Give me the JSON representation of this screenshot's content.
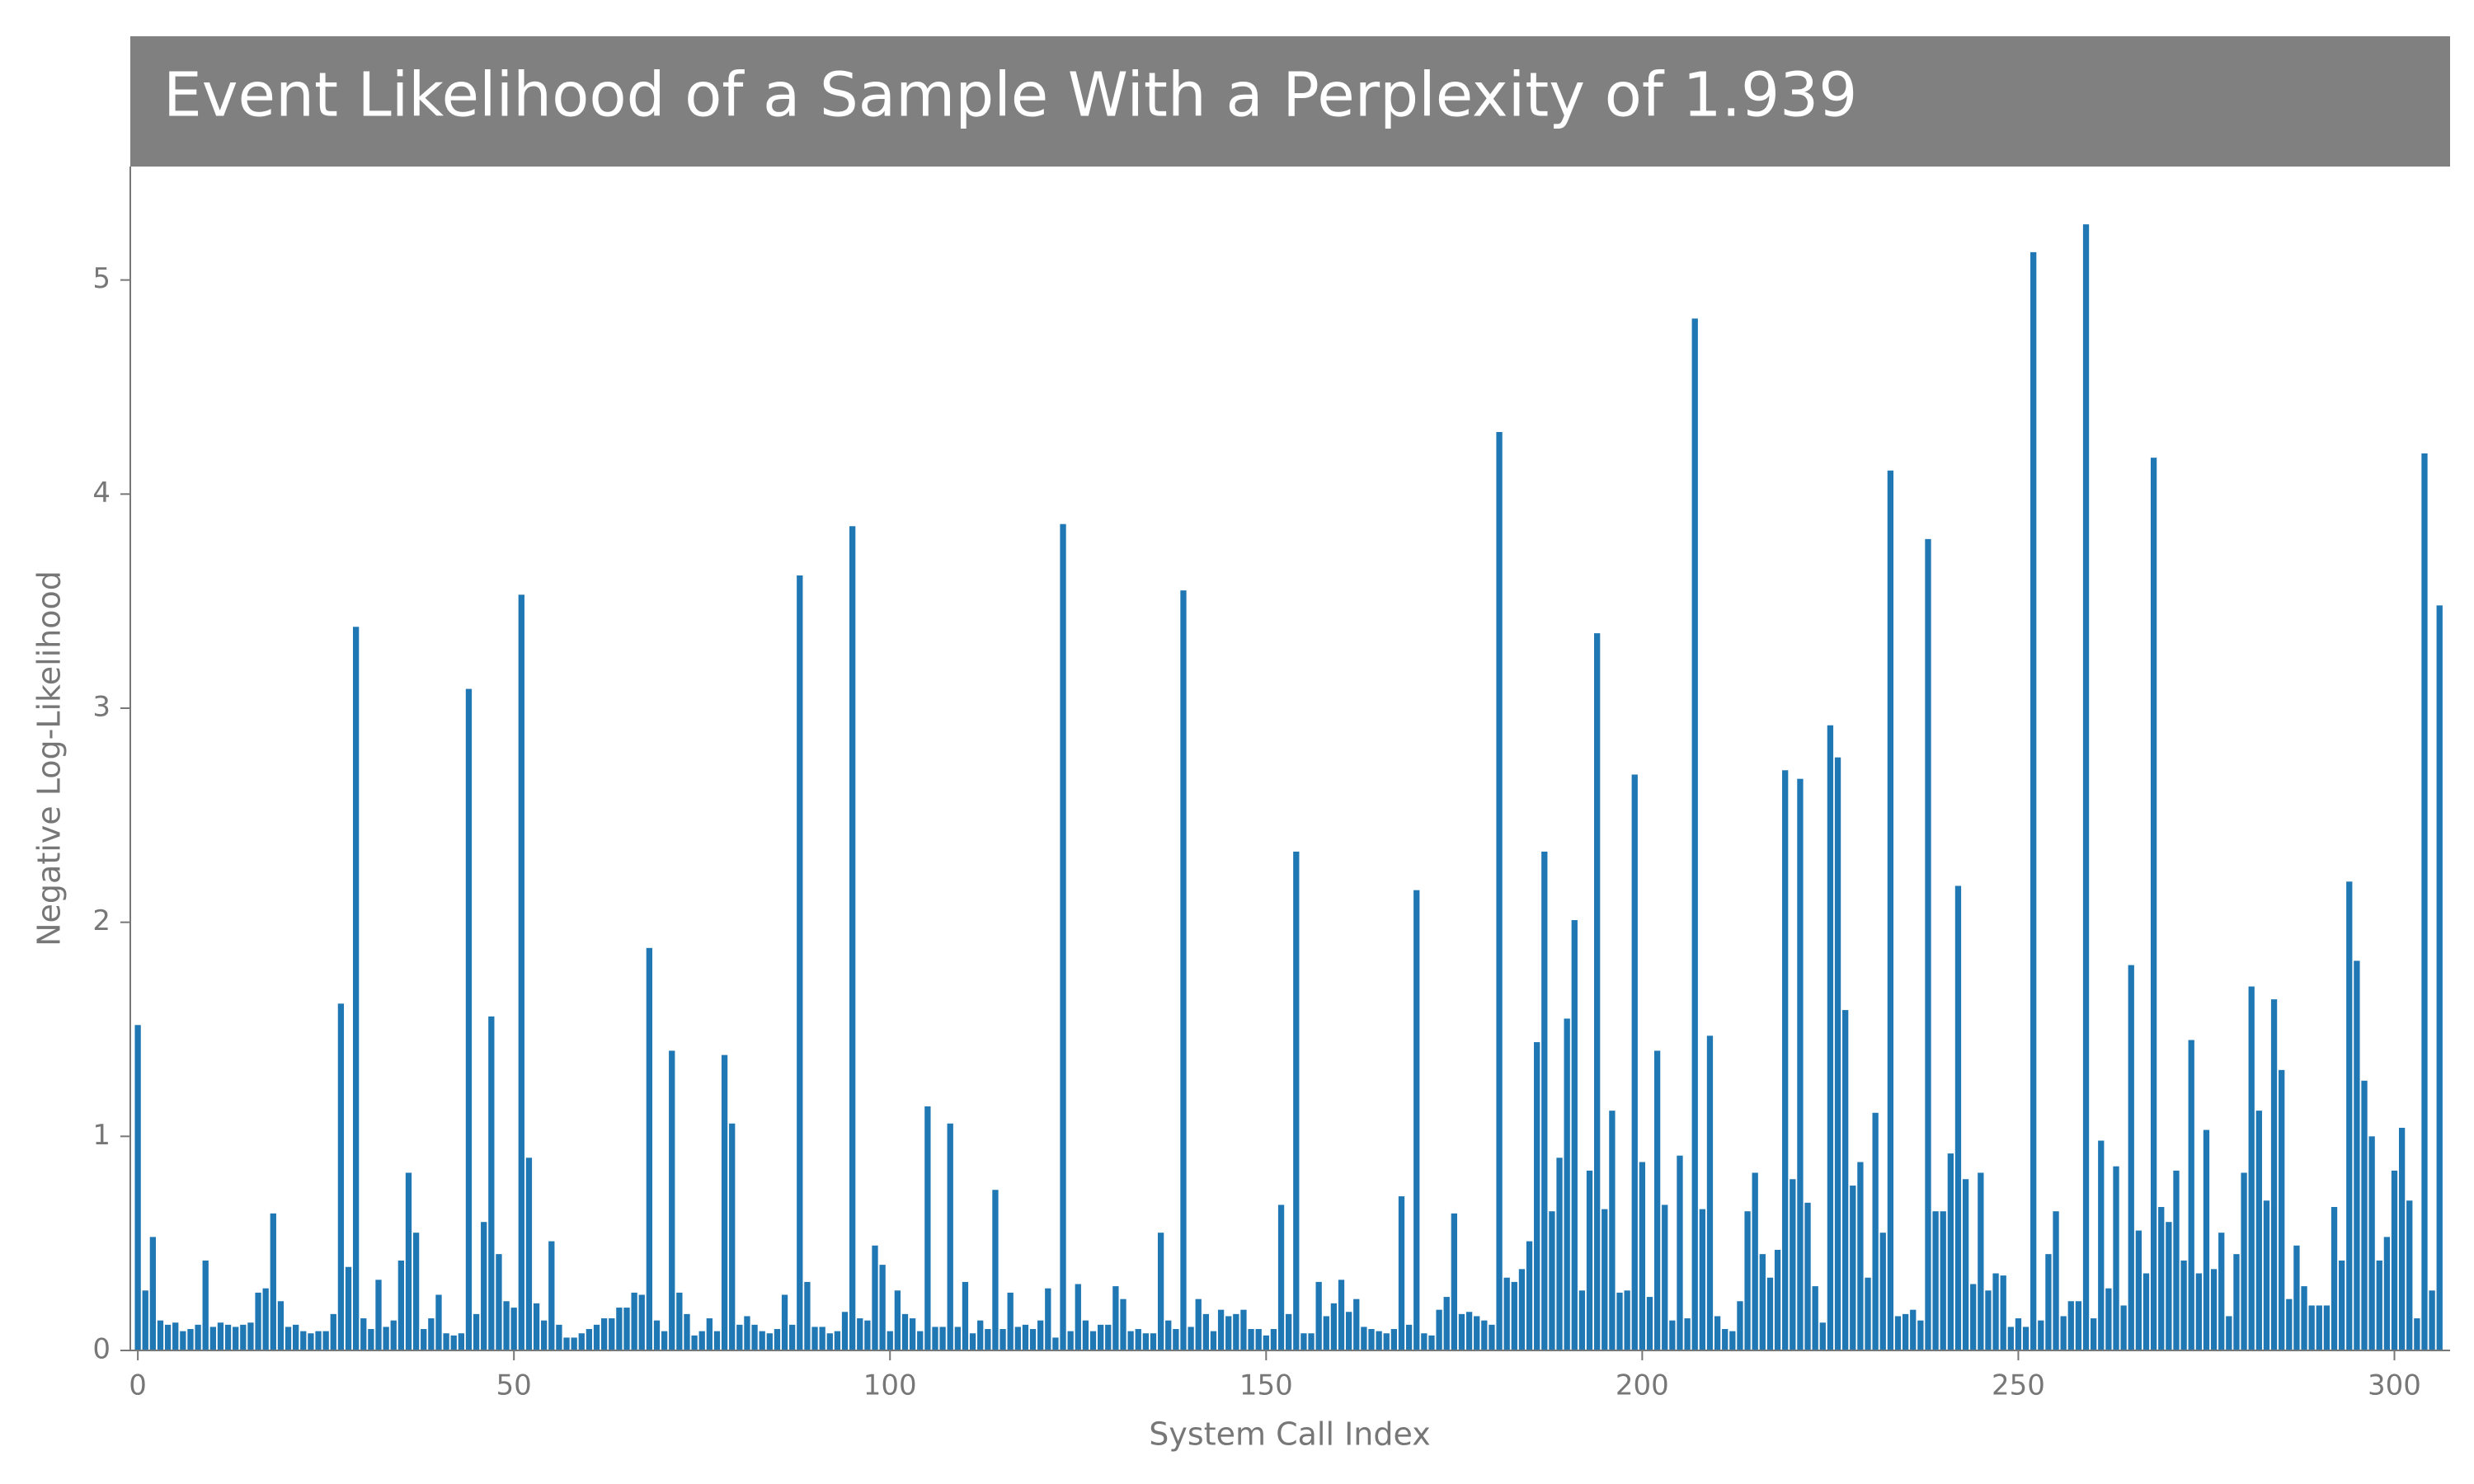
{
  "chart_data": {
    "type": "bar",
    "title": "Event Likelihood of a Sample With a Perplexity of 1.939",
    "x_label": "System Call Index",
    "y_label": "Negative Log-Likelihood",
    "color": "#1f77b4",
    "x": [
      0,
      1,
      2,
      3,
      4,
      5,
      6,
      7,
      8,
      9,
      10,
      11,
      12,
      13,
      14,
      15,
      16,
      17,
      18,
      19,
      20,
      21,
      22,
      23,
      24,
      25,
      26,
      27,
      28,
      29,
      30,
      31,
      32,
      33,
      34,
      35,
      36,
      37,
      38,
      39,
      40,
      41,
      42,
      43,
      44,
      45,
      46,
      47,
      48,
      49,
      50,
      51,
      52,
      53,
      54,
      55,
      56,
      57,
      58,
      59,
      60,
      61,
      62,
      63,
      64,
      65,
      66,
      67,
      68,
      69,
      70,
      71,
      72,
      73,
      74,
      75,
      76,
      77,
      78,
      79,
      80,
      81,
      82,
      83,
      84,
      85,
      86,
      87,
      88,
      89,
      90,
      91,
      92,
      93,
      94,
      95,
      96,
      97,
      98,
      99,
      100,
      101,
      102,
      103,
      104,
      105,
      106,
      107,
      108,
      109,
      110,
      111,
      112,
      113,
      114,
      115,
      116,
      117,
      118,
      119,
      120,
      121,
      122,
      123,
      124,
      125,
      126,
      127,
      128,
      129,
      130,
      131,
      132,
      133,
      134,
      135,
      136,
      137,
      138,
      139,
      140,
      141,
      142,
      143,
      144,
      145,
      146,
      147,
      148,
      149,
      150,
      151,
      152,
      153,
      154,
      155,
      156,
      157,
      158,
      159,
      160,
      161,
      162,
      163,
      164,
      165,
      166,
      167,
      168,
      169,
      170,
      171,
      172,
      173,
      174,
      175,
      176,
      177,
      178,
      179,
      180,
      181,
      182,
      183,
      184,
      185,
      186,
      187,
      188,
      189,
      190,
      191,
      192,
      193,
      194,
      195,
      196,
      197,
      198,
      199,
      200,
      201,
      202,
      203,
      204,
      205,
      206,
      207,
      208,
      209,
      210,
      211,
      212,
      213,
      214,
      215,
      216,
      217,
      218,
      219,
      220,
      221,
      222,
      223,
      224,
      225,
      226,
      227,
      228,
      229,
      230,
      231,
      232,
      233,
      234,
      235,
      236,
      237,
      238,
      239,
      240,
      241,
      242,
      243,
      244,
      245,
      246,
      247,
      248,
      249,
      250,
      251,
      252,
      253,
      254,
      255,
      256,
      257,
      258,
      259,
      260,
      261,
      262,
      263,
      264,
      265,
      266,
      267,
      268,
      269,
      270,
      271,
      272,
      273,
      274,
      275,
      276,
      277,
      278,
      279,
      280,
      281,
      282,
      283,
      284,
      285,
      286,
      287,
      288,
      289,
      290,
      291,
      292,
      293,
      294,
      295,
      296,
      297,
      298,
      299,
      300,
      301,
      302,
      303,
      304,
      305,
      306
    ],
    "values": [
      1.52,
      0.28,
      0.53,
      0.14,
      0.12,
      0.13,
      0.09,
      0.1,
      0.12,
      0.42,
      0.11,
      0.13,
      0.12,
      0.11,
      0.12,
      0.13,
      0.27,
      0.29,
      0.64,
      0.23,
      0.11,
      0.12,
      0.09,
      0.08,
      0.09,
      0.09,
      0.17,
      1.62,
      0.39,
      3.38,
      0.15,
      0.1,
      0.33,
      0.11,
      0.14,
      0.42,
      0.83,
      0.55,
      0.1,
      0.15,
      0.26,
      0.08,
      0.07,
      0.08,
      3.09,
      0.17,
      0.6,
      1.56,
      0.45,
      0.23,
      0.2,
      3.53,
      0.9,
      0.22,
      0.14,
      0.51,
      0.12,
      0.06,
      0.06,
      0.08,
      0.1,
      0.12,
      0.15,
      0.15,
      0.2,
      0.2,
      0.27,
      0.26,
      1.88,
      0.14,
      0.09,
      1.4,
      0.27,
      0.17,
      0.07,
      0.09,
      0.15,
      0.09,
      1.38,
      1.06,
      0.12,
      0.16,
      0.12,
      0.09,
      0.08,
      0.1,
      0.26,
      0.12,
      3.62,
      0.32,
      0.11,
      0.11,
      0.08,
      0.09,
      0.18,
      3.85,
      0.15,
      0.14,
      0.49,
      0.4,
      0.09,
      0.28,
      0.17,
      0.15,
      0.09,
      1.14,
      0.11,
      0.11,
      1.06,
      0.11,
      0.32,
      0.08,
      0.14,
      0.1,
      0.75,
      0.1,
      0.27,
      0.11,
      0.12,
      0.1,
      0.14,
      0.29,
      0.06,
      3.86,
      0.09,
      0.31,
      0.14,
      0.09,
      0.12,
      0.12,
      0.3,
      0.24,
      0.09,
      0.1,
      0.08,
      0.08,
      0.55,
      0.14,
      0.1,
      3.55,
      0.11,
      0.24,
      0.17,
      0.09,
      0.19,
      0.16,
      0.17,
      0.19,
      0.1,
      0.1,
      0.07,
      0.1,
      0.68,
      0.17,
      2.33,
      0.08,
      0.08,
      0.32,
      0.16,
      0.22,
      0.33,
      0.18,
      0.24,
      0.11,
      0.1,
      0.09,
      0.08,
      0.1,
      0.72,
      0.12,
      2.15,
      0.08,
      0.07,
      0.19,
      0.25,
      0.64,
      0.17,
      0.18,
      0.16,
      0.14,
      0.12,
      4.29,
      0.34,
      0.32,
      0.38,
      0.51,
      1.44,
      2.33,
      0.65,
      0.9,
      1.55,
      2.01,
      0.28,
      0.84,
      3.35,
      0.66,
      1.12,
      0.27,
      0.28,
      2.69,
      0.88,
      0.25,
      1.4,
      0.68,
      0.14,
      0.91,
      0.15,
      4.82,
      0.66,
      1.47,
      0.16,
      0.1,
      0.09,
      0.23,
      0.65,
      0.83,
      0.45,
      0.34,
      0.47,
      2.71,
      0.8,
      2.67,
      0.69,
      0.3,
      0.13,
      2.92,
      2.77,
      1.59,
      0.77,
      0.88,
      0.34,
      1.11,
      0.55,
      4.11,
      0.16,
      0.17,
      0.19,
      0.14,
      3.79,
      0.65,
      0.65,
      0.92,
      2.17,
      0.8,
      0.31,
      0.83,
      0.28,
      0.36,
      0.35,
      0.11,
      0.15,
      0.11,
      5.13,
      0.14,
      0.45,
      0.65,
      0.16,
      0.23,
      0.23,
      5.26,
      0.15,
      0.98,
      0.29,
      0.86,
      0.21,
      1.8,
      0.56,
      0.36,
      4.17,
      0.67,
      0.6,
      0.84,
      0.42,
      1.45,
      0.36,
      1.03,
      0.38,
      0.55,
      0.16,
      0.45,
      0.83,
      1.7,
      1.12,
      0.7,
      1.64,
      1.31,
      0.24,
      0.49,
      0.3,
      0.21,
      0.21,
      0.21,
      0.67,
      0.42,
      2.19,
      1.82,
      1.26,
      1.0,
      0.42,
      0.53,
      0.84,
      1.04,
      0.7,
      0.15,
      4.19,
      0.28,
      3.48
    ],
    "xlim": [
      -1,
      307.4
    ],
    "xticks": [
      0,
      50,
      100,
      150,
      200,
      250,
      300
    ],
    "ylim": [
      0,
      5.53
    ],
    "yticks": [
      0,
      1,
      2,
      3,
      4,
      5
    ]
  }
}
